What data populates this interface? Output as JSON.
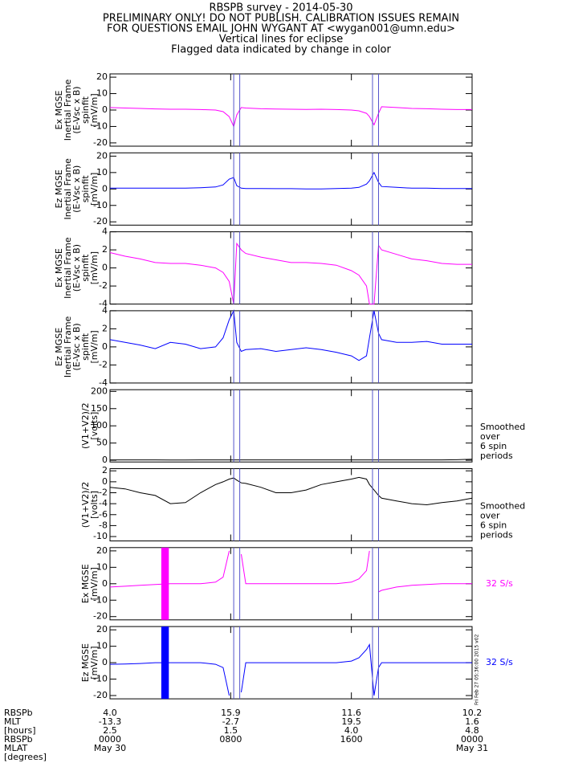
{
  "title": [
    "RBSPB survey - 2014-05-30",
    "PRELIMINARY ONLY! DO NOT PUBLISH. CALIBRATION ISSUES REMAIN",
    "FOR QUESTIONS EMAIL JOHN WYGANT AT <wygan001@umn.edu>",
    "Vertical lines for eclipse",
    "Flagged data indicated by change in color"
  ],
  "x_axis": {
    "xlim": [
      0,
      24
    ],
    "xticks": [
      0,
      8,
      16,
      24
    ],
    "row_labels": [
      "RBSPb",
      "MLT",
      "[hours]",
      "RBSPb",
      "MLAT",
      "[degrees]"
    ],
    "rows": [
      [
        "4.0",
        "15.9",
        "11.6",
        "10.2"
      ],
      [
        "-13.3",
        "-2.7",
        "19.5",
        "1.6"
      ],
      [
        "2.5",
        "1.5",
        "4.0",
        "4.8"
      ],
      [
        "0000",
        "0800",
        "1600",
        "0000"
      ],
      [
        "May 30",
        null,
        null,
        "May 31"
      ]
    ]
  },
  "eclipse_x": [
    8.2,
    8.6,
    17.4,
    17.8
  ],
  "timestamp": "Fri Feb 27 05:36:00 2015 v02",
  "chart_data": [
    {
      "type": "line",
      "ylabel": [
        "Ex MGSE",
        "Inertial Frame",
        "(E-Vsc x B)",
        "spinfit",
        "[mV/m]"
      ],
      "ylim": [
        -22,
        22
      ],
      "yticks": [
        -20,
        -10,
        0,
        10,
        20
      ],
      "x": [
        0,
        1,
        2,
        3,
        4,
        5,
        6,
        7,
        7.5,
        7.9,
        8.2,
        8.4,
        8.7,
        9,
        10,
        11,
        12,
        13,
        14,
        15,
        16,
        16.5,
        17,
        17.2,
        17.5,
        17.8,
        18,
        19,
        20,
        21,
        22,
        23,
        24
      ],
      "series": [
        {
          "color": "#ff00ff",
          "values": [
            1.5,
            1.2,
            1,
            0.7,
            0.5,
            0.5,
            0.3,
            0,
            -1,
            -4,
            -10,
            -3,
            1.5,
            1.2,
            0.8,
            0.6,
            0.5,
            0.4,
            0.5,
            0.3,
            0,
            -0.5,
            -2,
            -4,
            -9,
            -2,
            2,
            1.5,
            1,
            0.8,
            0.5,
            0.3,
            0.3
          ]
        }
      ]
    },
    {
      "type": "line",
      "ylabel": [
        "Ez MGSE",
        "Inertial Frame",
        "(E-Vsc x B)",
        "spinfit",
        "[mV/m]"
      ],
      "ylim": [
        -22,
        22
      ],
      "yticks": [
        -20,
        -10,
        0,
        10,
        20
      ],
      "x": [
        0,
        1,
        2,
        3,
        4,
        5,
        6,
        7,
        7.5,
        7.9,
        8.2,
        8.4,
        8.7,
        9,
        10,
        11,
        12,
        13,
        14,
        15,
        16,
        16.5,
        17,
        17.2,
        17.5,
        17.8,
        18,
        19,
        20,
        21,
        22,
        23,
        24
      ],
      "series": [
        {
          "color": "#0000ff",
          "values": [
            0.5,
            0.5,
            0.5,
            0.5,
            0.5,
            0.5,
            0.8,
            1.2,
            2.5,
            6,
            7,
            2,
            0.5,
            0.3,
            0.3,
            0.2,
            0.2,
            0,
            0,
            0.3,
            0.5,
            1,
            3,
            5,
            10,
            4,
            1.5,
            1,
            0.5,
            0.5,
            0.3,
            0.3,
            0.3
          ]
        }
      ]
    },
    {
      "type": "line",
      "ylabel": [
        "Ex MGSE",
        "Inertial Frame",
        "(E-Vsc x B)",
        "spinfit",
        "[mV/m]"
      ],
      "ylim": [
        -4,
        4
      ],
      "yticks": [
        -4,
        -2,
        0,
        2,
        4
      ],
      "x": [
        0,
        1,
        2,
        3,
        4,
        5,
        6,
        7,
        7.5,
        7.9,
        8.2,
        8.4,
        8.7,
        9,
        10,
        11,
        12,
        13,
        14,
        15,
        16,
        16.5,
        17,
        17.2,
        17.5,
        17.8,
        18,
        19,
        20,
        21,
        22,
        23,
        24
      ],
      "series": [
        {
          "color": "#ff00ff",
          "values": [
            1.7,
            1.3,
            1,
            0.6,
            0.5,
            0.5,
            0.3,
            0,
            -0.5,
            -1.5,
            -4,
            2.7,
            2,
            1.6,
            1.2,
            0.9,
            0.6,
            0.6,
            0.5,
            0.3,
            -0.3,
            -0.8,
            -2,
            -4,
            -4,
            2.5,
            2,
            1.5,
            1,
            0.8,
            0.5,
            0.4,
            0.4
          ]
        }
      ]
    },
    {
      "type": "line",
      "ylabel": [
        "Ez MGSE",
        "Inertial Frame",
        "(E-Vsc x B)",
        "spinfit",
        "[mV/m]"
      ],
      "ylim": [
        -4,
        4
      ],
      "yticks": [
        -4,
        -2,
        0,
        2,
        4
      ],
      "x": [
        0,
        1,
        2,
        3,
        4,
        5,
        6,
        7,
        7.5,
        7.9,
        8.2,
        8.4,
        8.7,
        9,
        10,
        11,
        12,
        13,
        14,
        15,
        16,
        16.5,
        17,
        17.2,
        17.5,
        17.8,
        18,
        19,
        20,
        21,
        22,
        23,
        24
      ],
      "series": [
        {
          "color": "#0000ff",
          "values": [
            0.8,
            0.5,
            0.2,
            -0.2,
            0.5,
            0.3,
            -0.2,
            0,
            1,
            3,
            4,
            0.5,
            -0.5,
            -0.3,
            -0.2,
            -0.5,
            -0.3,
            -0.1,
            -0.3,
            -0.6,
            -1,
            -1.5,
            -1,
            1,
            4,
            1.5,
            0.8,
            0.5,
            0.5,
            0.6,
            0.3,
            0.3,
            0.3
          ]
        }
      ]
    },
    {
      "type": "line",
      "ylabel": [
        "(V1+V2)/2",
        "[volts]"
      ],
      "ylim": [
        -5,
        205
      ],
      "yticks": [
        0,
        50,
        100,
        150,
        200
      ],
      "note": [
        "Smoothed",
        "over",
        "6 spin",
        "periods"
      ],
      "x": [
        0,
        1,
        2,
        3,
        4,
        5,
        6,
        7,
        7.5,
        7.9,
        8.2,
        8.4,
        8.7,
        9,
        10,
        11,
        12,
        13,
        14,
        15,
        16,
        16.5,
        17,
        17.2,
        17.5,
        17.8,
        18,
        19,
        20,
        21,
        22,
        23,
        24
      ],
      "series": [
        {
          "color": "#000000",
          "values": [
            1,
            1,
            1,
            1,
            0.5,
            0.5,
            1,
            1,
            1,
            1,
            1,
            1,
            1,
            1,
            1,
            1,
            1,
            1,
            1,
            1,
            1,
            1,
            1,
            1,
            1,
            1,
            1,
            1,
            1,
            1,
            1,
            1.5,
            3
          ]
        }
      ]
    },
    {
      "type": "line",
      "ylabel": [
        "(V1+V2)/2",
        "[volts]"
      ],
      "ylim": [
        -10.8,
        2.4
      ],
      "yticks": [
        -10,
        -8,
        -6,
        -4,
        -2,
        0,
        2
      ],
      "note": [
        "Smoothed",
        "over",
        "6 spin",
        "periods"
      ],
      "x": [
        0,
        1,
        2,
        3,
        4,
        5,
        6,
        7,
        7.5,
        7.9,
        8.2,
        8.4,
        8.7,
        9,
        10,
        11,
        12,
        13,
        14,
        15,
        16,
        16.5,
        17,
        17.2,
        17.5,
        17.8,
        18,
        19,
        20,
        21,
        22,
        23,
        24
      ],
      "series": [
        {
          "color": "#000000",
          "values": [
            -1,
            -1.3,
            -2,
            -2.5,
            -4,
            -3.8,
            -2,
            -0.5,
            0,
            0.5,
            0.7,
            0.3,
            -0.2,
            -0.3,
            -1,
            -2,
            -2,
            -1.5,
            -0.5,
            0,
            0.5,
            0.8,
            0.5,
            -0.5,
            -1.5,
            -2.5,
            -3,
            -3.5,
            -4,
            -4.2,
            -3.8,
            -3.5,
            -3
          ]
        }
      ]
    },
    {
      "type": "line",
      "ylabel": [
        "Ex MGSE",
        "[mV/m]"
      ],
      "ylim": [
        -22,
        22
      ],
      "yticks": [
        -20,
        -10,
        0,
        10,
        20
      ],
      "note": [
        "32 S/s"
      ],
      "flag_x": [
        3.4,
        3.9
      ],
      "x": [
        0,
        1,
        2,
        3,
        4,
        5,
        6,
        7,
        7.5,
        7.9,
        8.2,
        8.4,
        8.7,
        9,
        10,
        11,
        12,
        13,
        14,
        15,
        16,
        16.5,
        17,
        17.2,
        17.5,
        17.8,
        18,
        19,
        20,
        21,
        22,
        23,
        24
      ],
      "series": [
        {
          "color": "#ff00ff",
          "values": [
            -2,
            -1.5,
            -1,
            -0.5,
            0,
            0,
            0,
            1,
            4,
            20,
            null,
            null,
            18,
            0,
            0,
            0,
            0,
            0,
            0,
            0,
            1,
            3,
            8,
            20,
            null,
            -5,
            -4,
            -2,
            -1,
            -0.5,
            0,
            0,
            0
          ]
        }
      ]
    },
    {
      "type": "line",
      "ylabel": [
        "Ez MGSE",
        "[mV/m]"
      ],
      "ylim": [
        -22,
        22
      ],
      "yticks": [
        -20,
        -10,
        0,
        10,
        20
      ],
      "note": [
        "32 S/s"
      ],
      "flag_x": [
        3.4,
        3.9
      ],
      "x": [
        0,
        1,
        2,
        3,
        4,
        5,
        6,
        7,
        7.5,
        7.9,
        8.2,
        8.4,
        8.7,
        9,
        10,
        11,
        12,
        13,
        14,
        15,
        16,
        16.5,
        17,
        17.2,
        17.5,
        17.8,
        18,
        19,
        20,
        21,
        22,
        23,
        24
      ],
      "series": [
        {
          "color": "#0000ff",
          "values": [
            -1,
            -0.8,
            -0.5,
            0,
            0,
            0,
            0,
            -1,
            -3,
            -20,
            null,
            null,
            -18,
            0,
            0,
            0,
            0,
            0,
            0,
            0,
            1,
            3,
            8,
            11,
            -20,
            -3,
            0,
            0,
            0,
            0,
            0,
            0,
            0
          ]
        }
      ]
    }
  ]
}
